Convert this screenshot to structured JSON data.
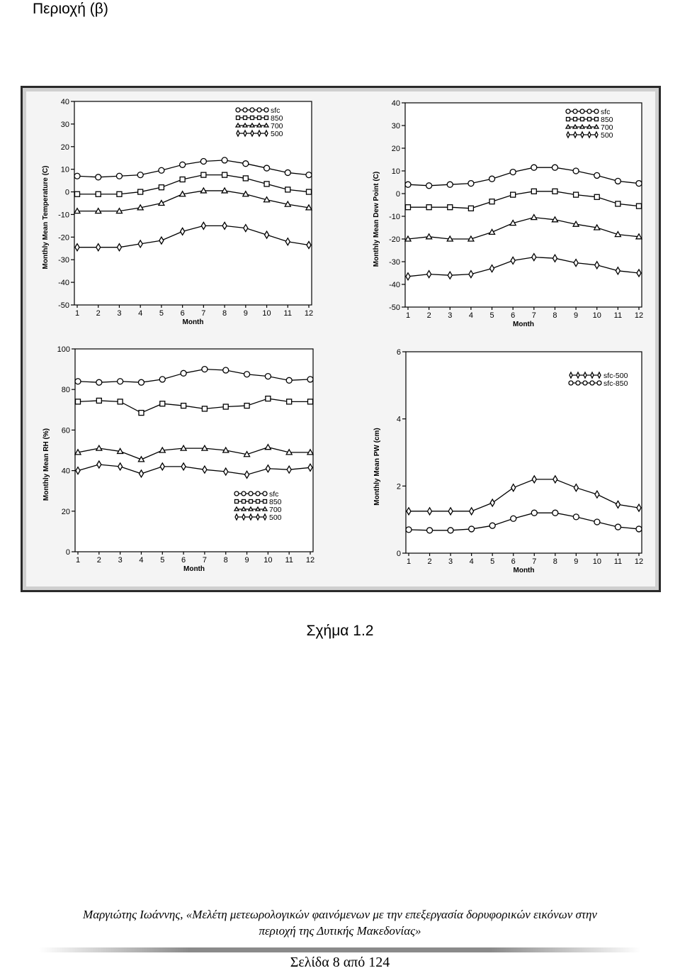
{
  "page": {
    "region_title": "Περιοχή (β)",
    "caption": "Σχήμα 1.2",
    "footer_line1": "Μαργιώτης Ιωάννης, «Μελέτη μετεωρολογικών φαινόμενων με την επεξεργασία δορυφορικών εικόνων στην",
    "footer_line2": "περιοχή της Δυτικής Μακεδονίας»",
    "page_number": "Σελίδα 8 από 124"
  },
  "colors": {
    "ink": "#000000",
    "plot_bg": "#ffffff",
    "frame_bg": "#f4f4f4"
  },
  "chart_data": [
    {
      "type": "line",
      "xlabel": "Month",
      "ylabel": "Monthly Mean Temperature (C)",
      "x": [
        1,
        2,
        3,
        4,
        5,
        6,
        7,
        8,
        9,
        10,
        11,
        12
      ],
      "ylim": [
        -50,
        40
      ],
      "yticks": [
        40,
        30,
        20,
        10,
        0,
        -10,
        -20,
        -30,
        -40,
        -50
      ],
      "legend_position": "top-right",
      "series": [
        {
          "name": "sfc",
          "marker": "circle",
          "values": [
            7,
            6.5,
            7,
            7.5,
            9.5,
            12,
            13.5,
            14,
            12.5,
            10.5,
            8.5,
            7.5
          ]
        },
        {
          "name": "850",
          "marker": "square",
          "values": [
            -1,
            -1,
            -1,
            0,
            2,
            5.5,
            7.5,
            7.5,
            6,
            3.5,
            1,
            0
          ]
        },
        {
          "name": "700",
          "marker": "triangle",
          "values": [
            -8.5,
            -8.5,
            -8.5,
            -7,
            -5,
            -1,
            0.5,
            0.5,
            -1,
            -3.5,
            -5.5,
            -7
          ]
        },
        {
          "name": "500",
          "marker": "diamond",
          "values": [
            -24.5,
            -24.5,
            -24.5,
            -23,
            -21.5,
            -17.5,
            -15,
            -15,
            -16,
            -19,
            -22,
            -23.5
          ]
        }
      ]
    },
    {
      "type": "line",
      "xlabel": "Month",
      "ylabel": "Monthly Mean Dew Point (C)",
      "x": [
        1,
        2,
        3,
        4,
        5,
        6,
        7,
        8,
        9,
        10,
        11,
        12
      ],
      "ylim": [
        -50,
        40
      ],
      "yticks": [
        40,
        30,
        20,
        10,
        0,
        -10,
        -20,
        -30,
        -40,
        -50
      ],
      "legend_position": "top-right",
      "series": [
        {
          "name": "sfc",
          "marker": "circle",
          "values": [
            4,
            3.5,
            4,
            4.5,
            6.5,
            9.5,
            11.5,
            11.5,
            10,
            8,
            5.5,
            4.5
          ]
        },
        {
          "name": "850",
          "marker": "square",
          "values": [
            -6,
            -6,
            -6,
            -6.5,
            -3.5,
            -0.5,
            1,
            1,
            -0.5,
            -1.5,
            -4.5,
            -5.5
          ]
        },
        {
          "name": "700",
          "marker": "triangle",
          "values": [
            -20,
            -19,
            -20,
            -20,
            -17,
            -13,
            -10.5,
            -11.5,
            -13.5,
            -15,
            -18,
            -19
          ]
        },
        {
          "name": "500",
          "marker": "diamond",
          "values": [
            -36.5,
            -35.5,
            -36,
            -35.5,
            -33,
            -29.5,
            -28,
            -28.5,
            -30.5,
            -31.5,
            -34,
            -35
          ]
        }
      ]
    },
    {
      "type": "line",
      "xlabel": "Month",
      "ylabel": "Monthly Mean RH (%)",
      "x": [
        1,
        2,
        3,
        4,
        5,
        6,
        7,
        8,
        9,
        10,
        11,
        12
      ],
      "ylim": [
        0,
        100
      ],
      "yticks": [
        100,
        80,
        60,
        40,
        20,
        0
      ],
      "legend_position": "bottom-right",
      "series": [
        {
          "name": "sfc",
          "marker": "circle",
          "values": [
            84,
            83.5,
            84,
            83.5,
            85,
            88,
            90,
            89.5,
            87.5,
            86.5,
            84.5,
            85
          ]
        },
        {
          "name": "850",
          "marker": "square",
          "values": [
            74,
            74.5,
            74,
            68.5,
            73,
            72,
            70.5,
            71.5,
            72,
            75.5,
            74,
            74
          ]
        },
        {
          "name": "700",
          "marker": "triangle",
          "values": [
            49,
            51,
            49.5,
            45.5,
            50,
            51,
            51,
            50,
            48,
            51.5,
            49,
            49
          ]
        },
        {
          "name": "500",
          "marker": "diamond",
          "values": [
            40,
            43,
            42,
            38.5,
            42,
            42,
            40.5,
            39.5,
            38,
            41,
            40.5,
            41.5
          ]
        }
      ]
    },
    {
      "type": "line",
      "xlabel": "Month",
      "ylabel": "Monthly Mean PW (cm)",
      "x": [
        1,
        2,
        3,
        4,
        5,
        6,
        7,
        8,
        9,
        10,
        11,
        12
      ],
      "ylim": [
        0,
        6
      ],
      "yticks": [
        6,
        4,
        2,
        0
      ],
      "legend_position": "top-right",
      "series": [
        {
          "name": "sfc-500",
          "marker": "diamond",
          "values": [
            1.25,
            1.25,
            1.25,
            1.25,
            1.5,
            1.95,
            2.2,
            2.2,
            1.95,
            1.75,
            1.45,
            1.35
          ]
        },
        {
          "name": "sfc-850",
          "marker": "circle",
          "values": [
            0.7,
            0.68,
            0.68,
            0.72,
            0.82,
            1.03,
            1.2,
            1.2,
            1.08,
            0.93,
            0.78,
            0.72
          ]
        }
      ]
    }
  ]
}
